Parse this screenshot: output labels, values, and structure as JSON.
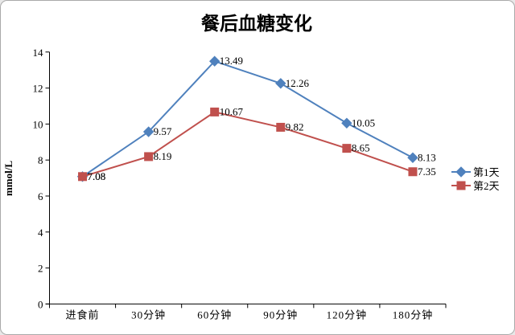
{
  "chart_data": {
    "type": "line",
    "title": "餐后血糖变化",
    "xlabel": "",
    "ylabel": "mmol/L",
    "categories": [
      "进食前",
      "30分钟",
      "60分钟",
      "90分钟",
      "120分钟",
      "180分钟"
    ],
    "series": [
      {
        "name": "第1天",
        "color": "#4f81bd",
        "marker": "diamond",
        "values": [
          7.08,
          9.57,
          13.49,
          12.26,
          10.05,
          8.13
        ],
        "point_labels": [
          "7.08",
          "9.57",
          "13.49",
          "12.26",
          "10.05",
          "8.13"
        ]
      },
      {
        "name": "第2天",
        "color": "#c0504d",
        "marker": "square",
        "values": [
          7.08,
          8.19,
          10.67,
          9.82,
          8.65,
          7.35
        ],
        "point_labels": [
          "7.08",
          "8.19",
          "10.67",
          "9.82",
          "8.65",
          "7.35"
        ]
      }
    ],
    "ylim": [
      0,
      14
    ],
    "ytick_step": 2,
    "yticks": [
      "0",
      "2",
      "4",
      "6",
      "8",
      "10",
      "12",
      "14"
    ],
    "grid": false,
    "legend_position": "right",
    "colors": {
      "axis": "#000000",
      "background": "#ffffff",
      "border": "#a9a9a9",
      "text": "#000000"
    }
  }
}
